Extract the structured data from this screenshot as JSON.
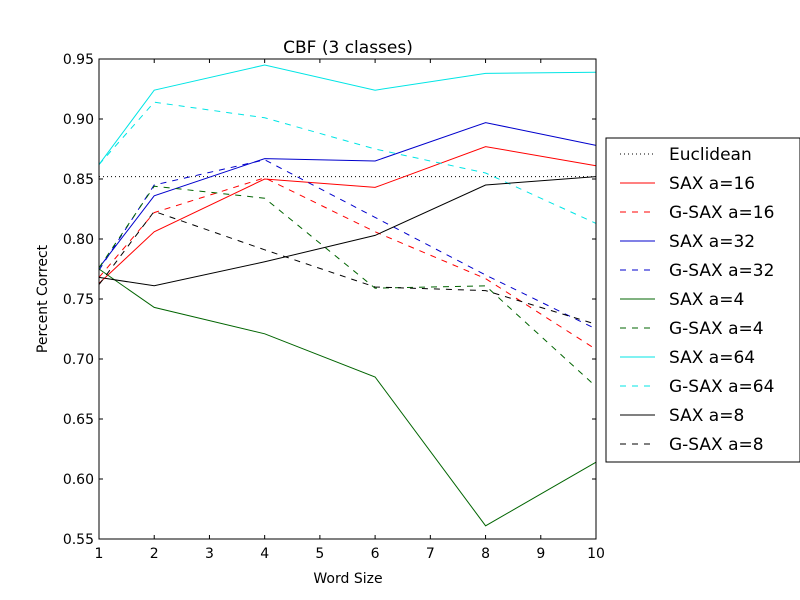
{
  "chart_data": {
    "type": "line",
    "title": "CBF (3 classes)",
    "xlabel": "Word Size",
    "ylabel": "Percent Correct",
    "xlim": [
      1,
      10
    ],
    "ylim": [
      0.55,
      0.95
    ],
    "xticks": [
      "1",
      "2",
      "3",
      "4",
      "5",
      "6",
      "7",
      "8",
      "9",
      "10"
    ],
    "yticks": [
      "0.55",
      "0.60",
      "0.65",
      "0.70",
      "0.75",
      "0.80",
      "0.85",
      "0.90",
      "0.95"
    ],
    "grid": false,
    "legend_position": "right-outside",
    "x": [
      1,
      2,
      4,
      6,
      8,
      10
    ],
    "baseline": {
      "name": "Euclidean",
      "value": 0.852,
      "color": "#000000",
      "style": "dotted"
    },
    "series": [
      {
        "name": "SAX a=16",
        "color": "#ff0000",
        "style": "solid",
        "values": [
          0.763,
          0.806,
          0.85,
          0.843,
          0.877,
          0.861
        ]
      },
      {
        "name": "G-SAX a=16",
        "color": "#ff0000",
        "style": "dashed",
        "values": [
          0.768,
          0.822,
          0.851,
          0.806,
          0.767,
          0.708
        ]
      },
      {
        "name": "SAX a=32",
        "color": "#0000cc",
        "style": "solid",
        "values": [
          0.776,
          0.836,
          0.867,
          0.865,
          0.897,
          0.878
        ]
      },
      {
        "name": "G-SAX a=32",
        "color": "#0000cc",
        "style": "dashed",
        "values": [
          0.774,
          0.845,
          0.866,
          0.818,
          0.77,
          0.725
        ]
      },
      {
        "name": "SAX a=4",
        "color": "#006400",
        "style": "solid",
        "values": [
          0.775,
          0.743,
          0.721,
          0.685,
          0.561,
          0.614
        ]
      },
      {
        "name": "G-SAX a=4",
        "color": "#006400",
        "style": "dashed",
        "values": [
          0.776,
          0.844,
          0.834,
          0.759,
          0.761,
          0.677
        ]
      },
      {
        "name": "SAX a=64",
        "color": "#00e5e5",
        "style": "solid",
        "values": [
          0.862,
          0.924,
          0.945,
          0.924,
          0.938,
          0.939
        ]
      },
      {
        "name": "G-SAX a=64",
        "color": "#00e5e5",
        "style": "dashed",
        "values": [
          0.862,
          0.914,
          0.901,
          0.875,
          0.855,
          0.813
        ]
      },
      {
        "name": "SAX a=8",
        "color": "#000000",
        "style": "solid",
        "values": [
          0.768,
          0.761,
          0.781,
          0.803,
          0.845,
          0.852
        ]
      },
      {
        "name": "G-SAX a=8",
        "color": "#000000",
        "style": "dashed",
        "values": [
          0.762,
          0.823,
          0.791,
          0.76,
          0.757,
          0.729
        ]
      }
    ]
  }
}
